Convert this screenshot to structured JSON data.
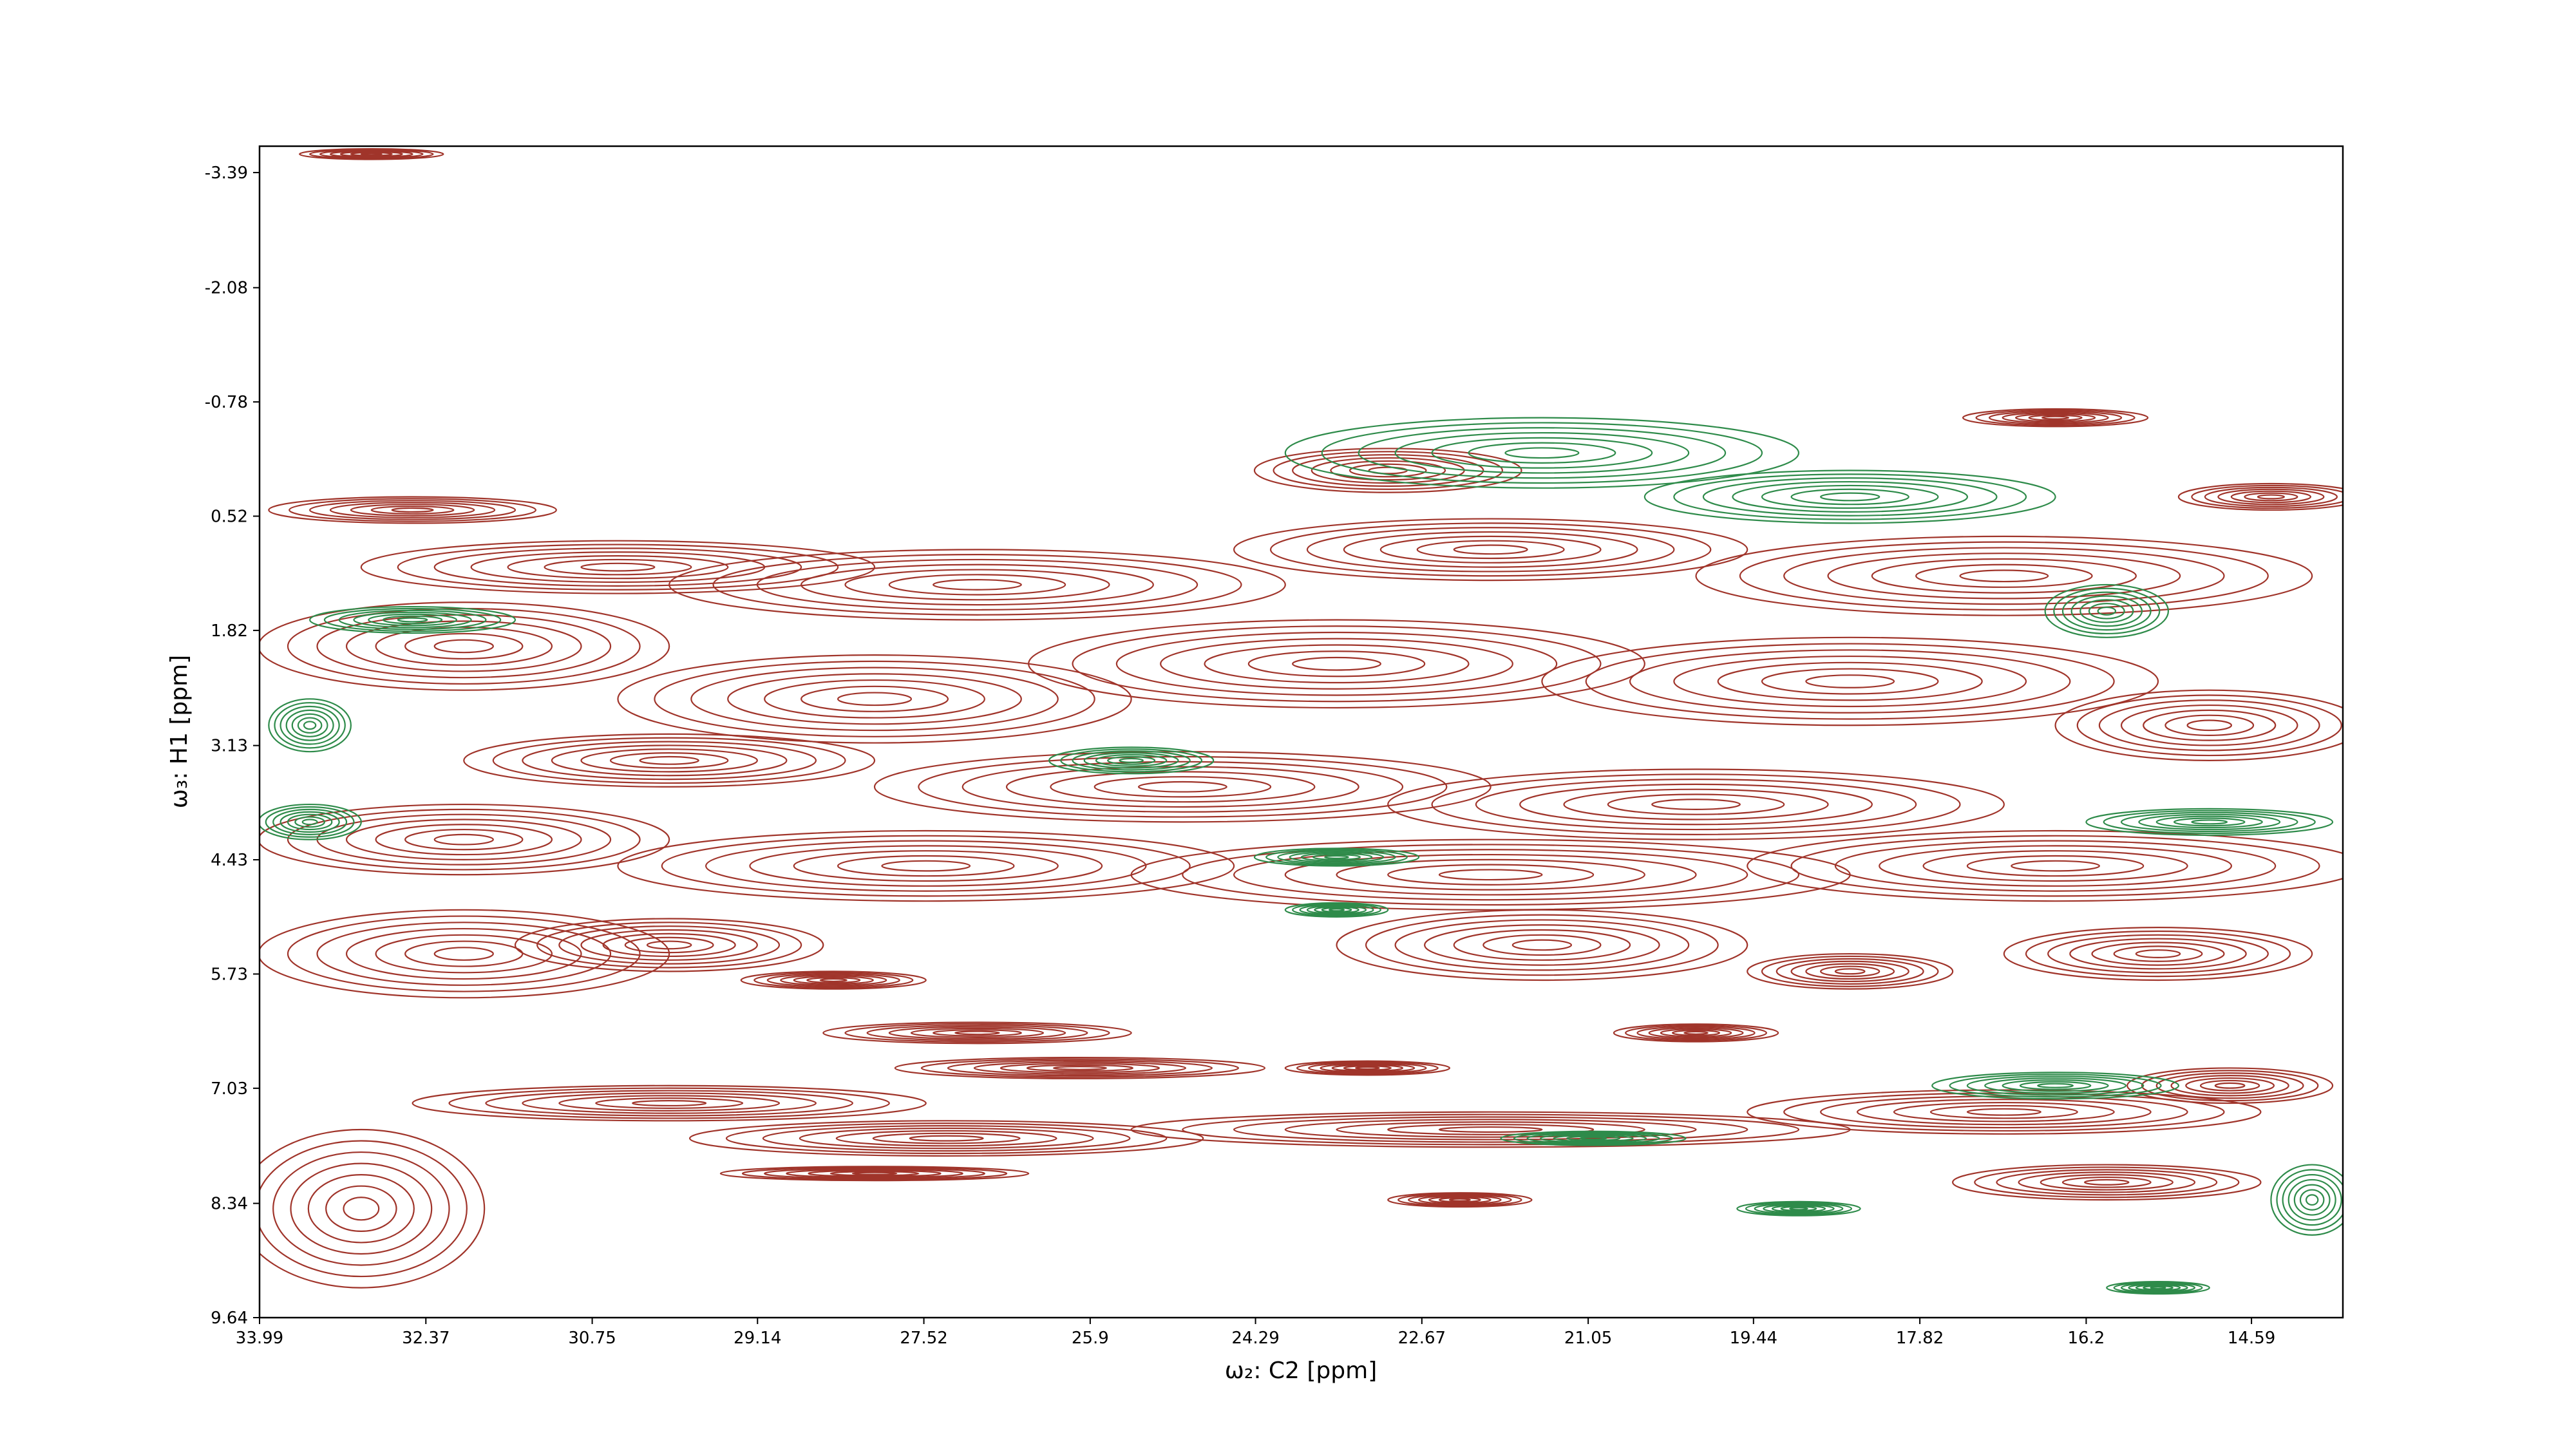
{
  "chart_data": {
    "type": "contour",
    "xlabel": "ω₂: C2 [ppm]",
    "ylabel": "ω₃: H1 [ppm]",
    "xlim": [
      33.99,
      13.7
    ],
    "ylim": [
      9.64,
      -3.69
    ],
    "xticks": [
      33.99,
      32.37,
      30.75,
      29.14,
      27.52,
      25.9,
      24.29,
      22.67,
      21.05,
      19.44,
      17.82,
      16.2,
      14.59
    ],
    "yticks": [
      -3.39,
      -2.08,
      -0.78,
      0.52,
      1.82,
      3.13,
      4.43,
      5.73,
      7.03,
      8.34,
      9.64
    ],
    "series": [
      {
        "color": "#a0342a",
        "x": [
          32.9,
          32.5,
          30.5,
          27.0,
          23.0,
          22.0,
          17.0,
          14.4,
          16.5,
          32.0,
          28.0,
          23.5,
          18.5,
          15.0,
          30.0,
          25.0,
          20.0,
          32.0,
          27.5,
          22.0,
          16.5,
          32.0,
          30.0,
          21.5,
          18.5,
          15.5,
          28.4,
          27.0,
          26.0,
          23.2,
          20.0,
          30.0,
          27.3,
          22.0,
          17.0,
          14.8,
          28.0,
          33.0,
          16.0,
          22.3
        ],
        "y": [
          -3.6,
          0.45,
          1.1,
          1.3,
          0.0,
          0.9,
          1.2,
          0.3,
          -0.6,
          2.0,
          2.6,
          2.2,
          2.4,
          2.9,
          3.3,
          3.6,
          3.8,
          4.2,
          4.5,
          4.6,
          4.5,
          5.5,
          5.4,
          5.4,
          5.7,
          5.5,
          5.8,
          6.4,
          6.8,
          6.8,
          6.4,
          7.2,
          7.6,
          7.5,
          7.3,
          7.0,
          8.0,
          8.4,
          8.1,
          8.3
        ],
        "xwidth": [
          0.7,
          1.4,
          2.5,
          3.0,
          1.3,
          2.5,
          3.0,
          0.9,
          0.9,
          2.0,
          2.5,
          3.0,
          3.0,
          1.5,
          2.0,
          3.0,
          3.0,
          2.0,
          3.0,
          3.5,
          3.0,
          2.0,
          1.5,
          2.0,
          1.0,
          1.5,
          0.9,
          1.5,
          1.8,
          0.8,
          0.8,
          2.5,
          2.5,
          3.5,
          2.5,
          1.0,
          1.5,
          1.2,
          1.5,
          0.7
        ],
        "ywidth": [
          0.06,
          0.15,
          0.3,
          0.4,
          0.25,
          0.35,
          0.45,
          0.15,
          0.1,
          0.5,
          0.5,
          0.5,
          0.5,
          0.4,
          0.3,
          0.4,
          0.4,
          0.4,
          0.4,
          0.4,
          0.4,
          0.5,
          0.3,
          0.4,
          0.2,
          0.3,
          0.1,
          0.12,
          0.12,
          0.08,
          0.1,
          0.2,
          0.2,
          0.2,
          0.25,
          0.2,
          0.08,
          0.9,
          0.2,
          0.08
        ]
      },
      {
        "color": "#2e8b4a",
        "x": [
          21.5,
          18.5,
          32.5,
          16.0,
          33.5,
          25.5,
          33.5,
          15.0,
          23.5,
          23.5,
          16.5,
          21.0,
          14.0,
          19.0,
          15.5
        ],
        "y": [
          -0.2,
          0.3,
          1.7,
          1.6,
          2.9,
          3.3,
          4.0,
          4.0,
          4.4,
          5.0,
          7.0,
          7.6,
          8.3,
          8.4,
          9.3
        ],
        "xwidth": [
          2.5,
          2.0,
          1.0,
          0.6,
          0.4,
          0.8,
          0.5,
          1.2,
          0.8,
          0.5,
          1.2,
          0.9,
          0.4,
          0.6,
          0.5
        ],
        "ywidth": [
          0.4,
          0.3,
          0.15,
          0.3,
          0.3,
          0.15,
          0.2,
          0.15,
          0.1,
          0.08,
          0.15,
          0.08,
          0.4,
          0.08,
          0.07
        ]
      }
    ]
  }
}
